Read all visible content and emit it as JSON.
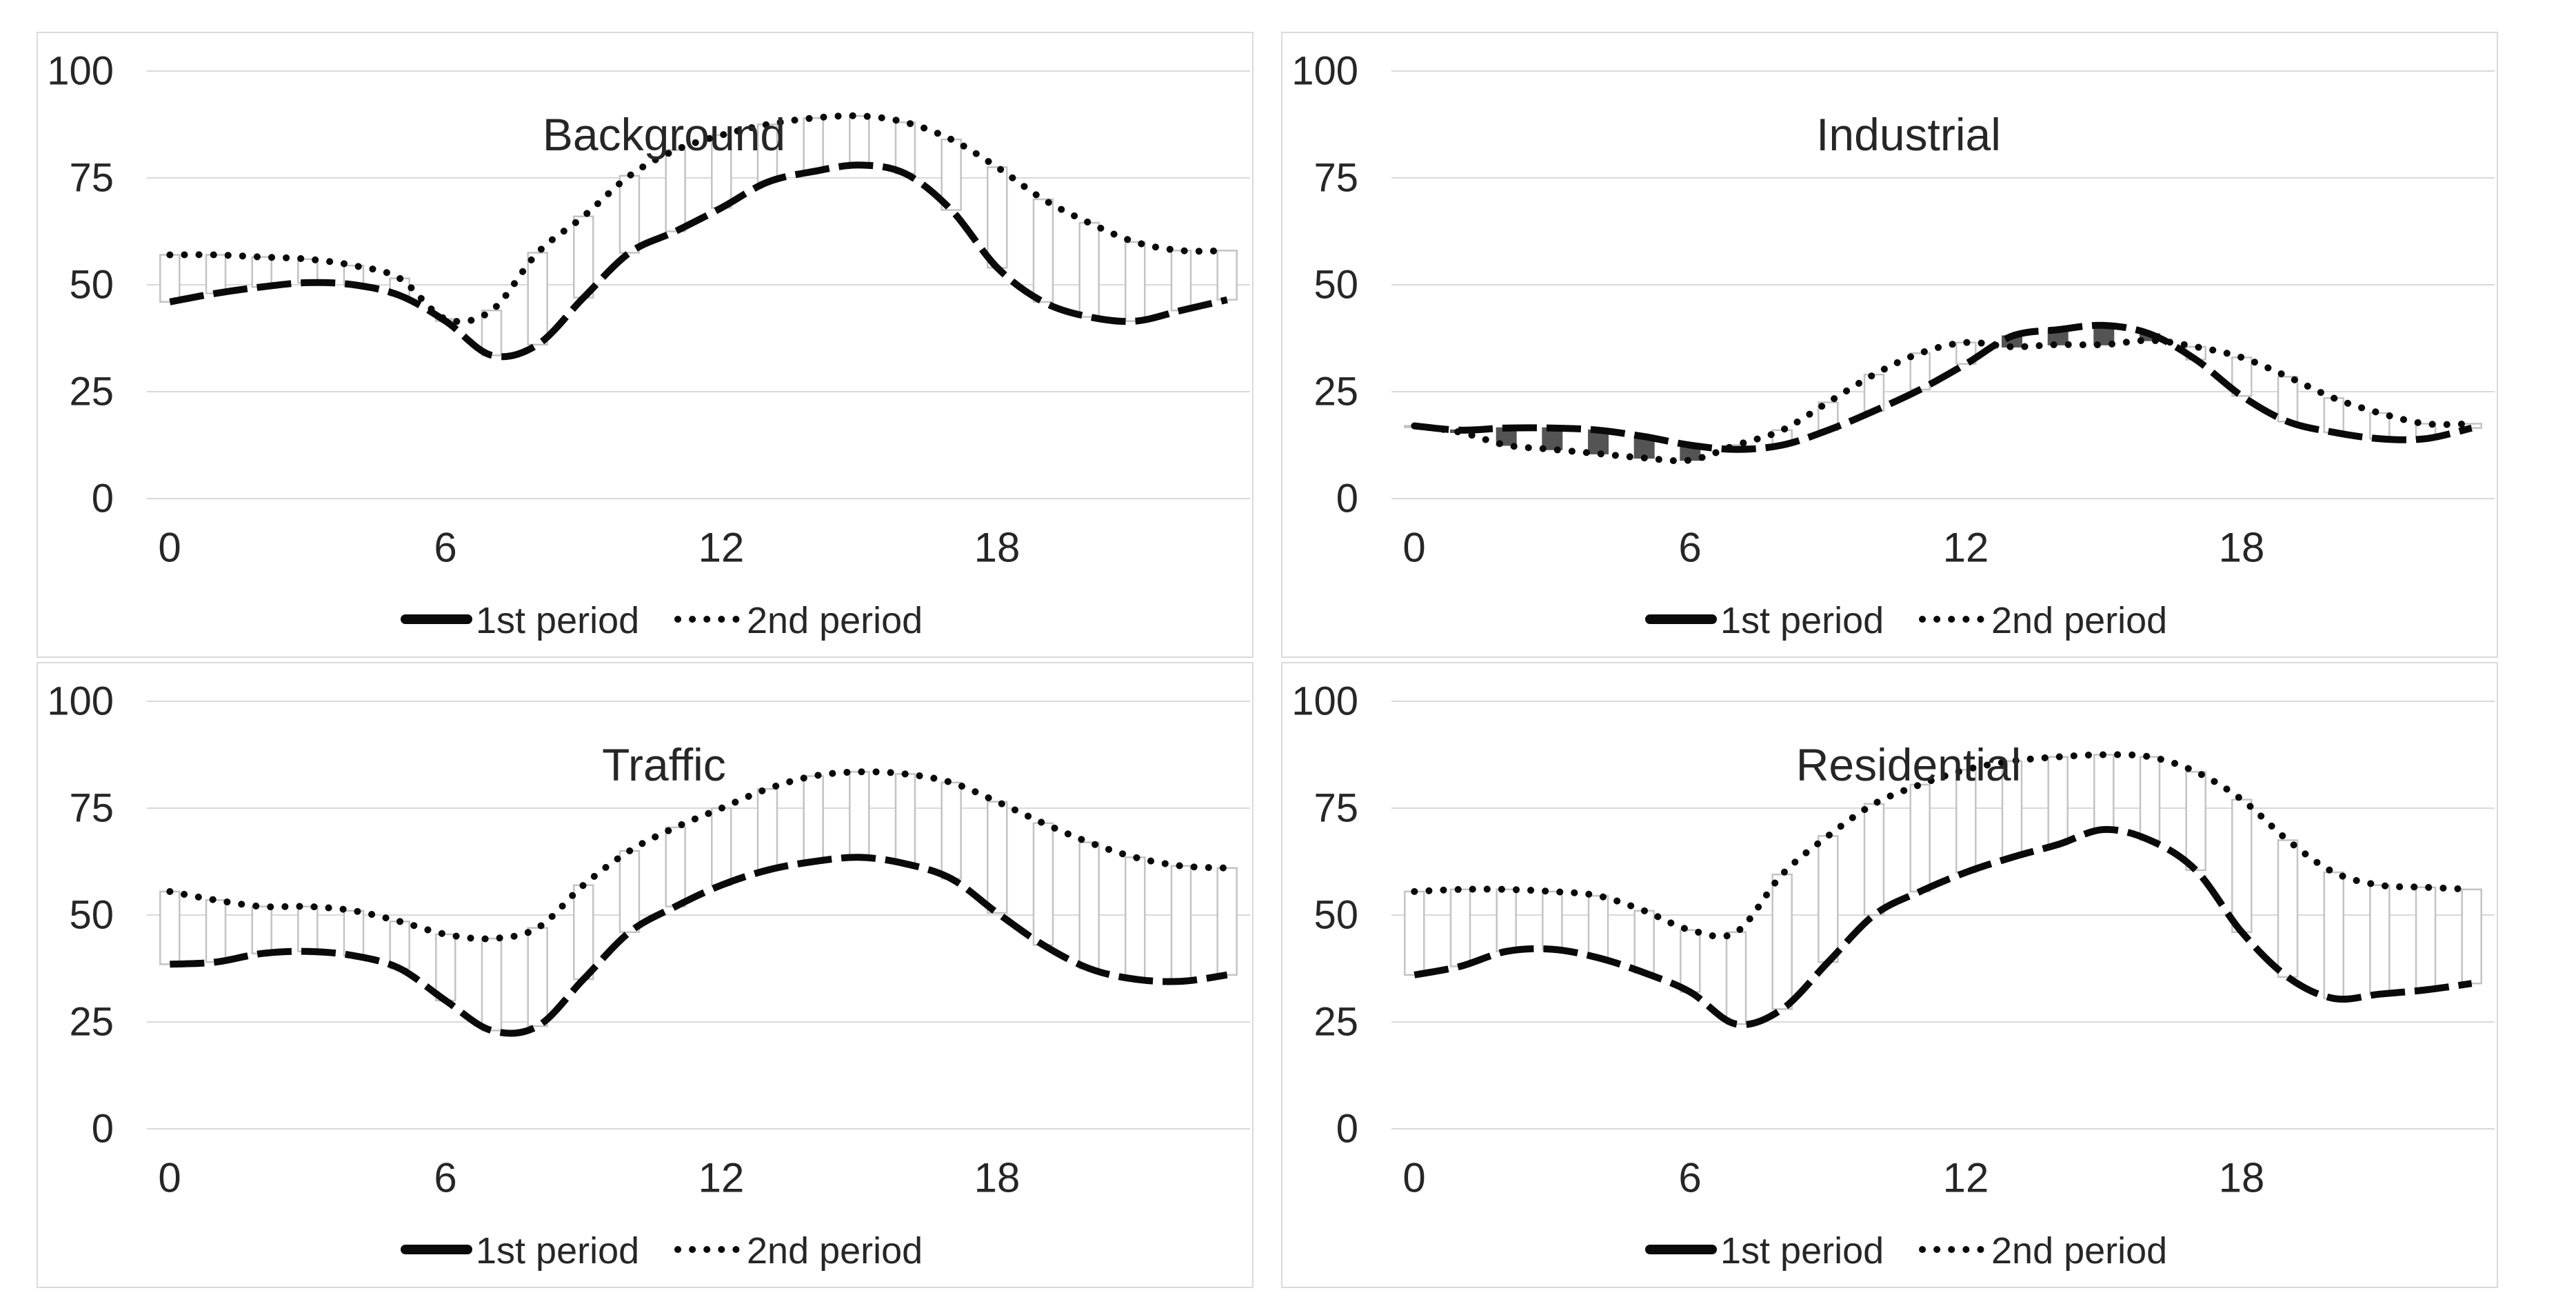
{
  "page": {
    "background": "#FFFFFF"
  },
  "colors": {
    "text": "#262626",
    "gridline": "#D9D9D9",
    "panel_border": "#DADADA",
    "series_line": "#0A0A0A",
    "updown_bar_up_fill": "#FFFFFF",
    "updown_bar_up_border": "#C3C3C3",
    "updown_bar_down_fill": "#545454"
  },
  "chart_data": [
    {
      "type": "line",
      "title": "Background",
      "x": [
        0,
        1,
        2,
        3,
        4,
        5,
        6,
        7,
        8,
        9,
        10,
        11,
        12,
        13,
        14,
        15,
        16,
        17,
        18,
        19,
        20,
        21,
        22,
        23
      ],
      "x_ticks": [
        0,
        6,
        12,
        18
      ],
      "y_ticks": [
        0,
        25,
        50,
        75,
        100
      ],
      "ylim": [
        0,
        100
      ],
      "xlabel": "",
      "ylabel": "",
      "grid": true,
      "legend_position": "bottom",
      "updown_bars": true,
      "series": [
        {
          "name": "1st period",
          "style": "thick-dashed",
          "values": [
            46,
            48,
            49.5,
            50.5,
            50,
            47.5,
            41.5,
            33.5,
            36,
            47,
            57.5,
            62.5,
            68,
            74,
            76.5,
            78,
            76,
            67.5,
            54,
            46,
            42.5,
            41.5,
            44,
            46.5
          ]
        },
        {
          "name": "2nd period",
          "style": "dotted",
          "values": [
            57,
            57,
            56.5,
            56,
            54.5,
            51.5,
            42,
            44,
            57.5,
            66,
            75.5,
            81.5,
            85,
            87.5,
            89,
            89.5,
            88,
            84,
            77.5,
            70,
            64.5,
            60,
            58,
            58
          ]
        }
      ]
    },
    {
      "type": "line",
      "title": "Industrial",
      "x": [
        0,
        1,
        2,
        3,
        4,
        5,
        6,
        7,
        8,
        9,
        10,
        11,
        12,
        13,
        14,
        15,
        16,
        17,
        18,
        19,
        20,
        21,
        22,
        23
      ],
      "x_ticks": [
        0,
        6,
        12,
        18
      ],
      "y_ticks": [
        0,
        25,
        50,
        75,
        100
      ],
      "ylim": [
        0,
        100
      ],
      "xlabel": "",
      "ylabel": "",
      "grid": true,
      "legend_position": "bottom",
      "updown_bars": true,
      "series": [
        {
          "name": "1st period",
          "style": "thick-dashed",
          "values": [
            17,
            16,
            16.5,
            16.5,
            16,
            14.5,
            12.5,
            11.5,
            12.5,
            16,
            20.5,
            25.5,
            31.5,
            38,
            39.5,
            40.5,
            38.5,
            32.5,
            24,
            18,
            15.5,
            14,
            14,
            16.5
          ]
        },
        {
          "name": "2nd period",
          "style": "dotted",
          "values": [
            17,
            15.5,
            12.5,
            11.5,
            10.5,
            9.5,
            9,
            12.5,
            16,
            22.5,
            29,
            34,
            36.5,
            35.5,
            36,
            36,
            37,
            35.5,
            33,
            28.5,
            23.5,
            20,
            17.5,
            17.5
          ]
        }
      ]
    },
    {
      "type": "line",
      "title": "Traffic",
      "x": [
        0,
        1,
        2,
        3,
        4,
        5,
        6,
        7,
        8,
        9,
        10,
        11,
        12,
        13,
        14,
        15,
        16,
        17,
        18,
        19,
        20,
        21,
        22,
        23
      ],
      "x_ticks": [
        0,
        6,
        12,
        18
      ],
      "y_ticks": [
        0,
        25,
        50,
        75,
        100
      ],
      "ylim": [
        0,
        100
      ],
      "xlabel": "",
      "ylabel": "",
      "grid": true,
      "legend_position": "bottom",
      "updown_bars": true,
      "series": [
        {
          "name": "1st period",
          "style": "thick-dashed",
          "values": [
            38.5,
            39,
            41,
            41.5,
            40.5,
            37.5,
            30,
            23,
            24,
            35,
            46,
            52,
            57,
            60.5,
            62.5,
            63.5,
            62,
            58.5,
            50.5,
            43,
            37.5,
            35,
            34.5,
            36
          ]
        },
        {
          "name": "2nd period",
          "style": "dotted",
          "values": [
            55.5,
            53.5,
            52,
            52,
            51,
            48.5,
            45.5,
            44.5,
            47,
            57,
            65,
            70.5,
            75,
            79.5,
            82.5,
            83.5,
            83,
            81,
            76.5,
            71.5,
            67,
            63.5,
            61.5,
            61
          ]
        }
      ]
    },
    {
      "type": "line",
      "title": "Residential",
      "x": [
        0,
        1,
        2,
        3,
        4,
        5,
        6,
        7,
        8,
        9,
        10,
        11,
        12,
        13,
        14,
        15,
        16,
        17,
        18,
        19,
        20,
        21,
        22,
        23
      ],
      "x_ticks": [
        0,
        6,
        12,
        18
      ],
      "y_ticks": [
        0,
        25,
        50,
        75,
        100
      ],
      "ylim": [
        0,
        100
      ],
      "xlabel": "",
      "ylabel": "",
      "grid": true,
      "legend_position": "bottom",
      "updown_bars": true,
      "series": [
        {
          "name": "1st period",
          "style": "thick-dashed",
          "values": [
            36,
            38,
            41.5,
            42,
            40,
            36.5,
            32,
            24.5,
            28,
            39,
            50,
            55.5,
            60,
            63.5,
            66.5,
            70,
            67.5,
            60.5,
            46,
            35.5,
            30.5,
            31.5,
            32.5,
            34
          ]
        },
        {
          "name": "2nd period",
          "style": "dotted",
          "values": [
            55.5,
            56,
            56,
            55.5,
            54.5,
            51,
            46.5,
            46,
            59.5,
            68.5,
            76,
            80.5,
            84,
            86,
            87,
            87.5,
            87,
            83.5,
            77,
            67.5,
            60,
            57,
            56.5,
            56
          ]
        }
      ]
    }
  ]
}
